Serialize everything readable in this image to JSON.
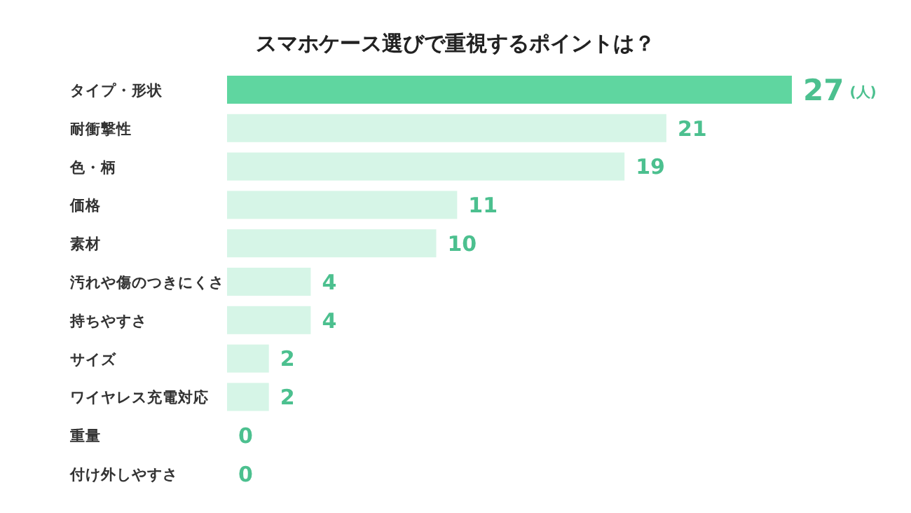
{
  "chart_data": {
    "type": "bar",
    "orientation": "horizontal",
    "title": "スマホケース選びで重視するポイントは？",
    "categories": [
      "タイプ・形状",
      "耐衝撃性",
      "色・柄",
      "価格",
      "素材",
      "汚れや傷のつきにくさ",
      "持ちやすさ",
      "サイズ",
      "ワイヤレス充電対応",
      "重量",
      "付け外しやすさ"
    ],
    "values": [
      27,
      21,
      19,
      11,
      10,
      4,
      4,
      2,
      2,
      0,
      0
    ],
    "colors": [
      "#5fd6a0",
      "#d6f5e7",
      "#d6f5e7",
      "#d6f5e7",
      "#d6f5e7",
      "#d6f5e7",
      "#d6f5e7",
      "#d6f5e7",
      "#d6f5e7",
      "#d6f5e7",
      "#d6f5e7"
    ],
    "data_labels": true,
    "annotations": [
      "(人)"
    ]
  }
}
